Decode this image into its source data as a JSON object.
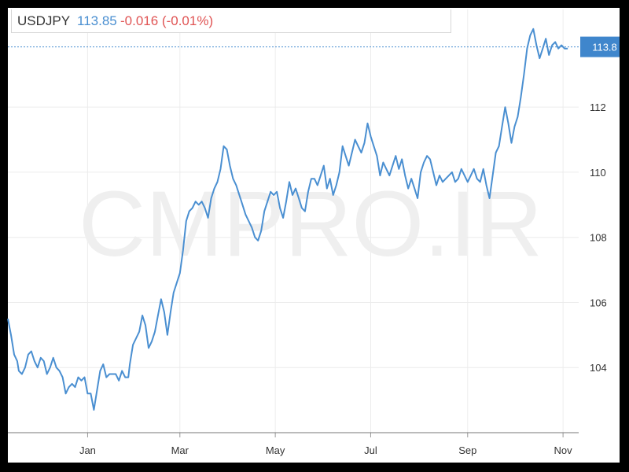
{
  "header": {
    "symbol": "USDJPY",
    "last": "113.85",
    "change": "-0.016 (-0.01%)"
  },
  "watermark": "CMPRO.IR",
  "colors": {
    "line": "#4a8fd1",
    "last_label_bg": "#3f86cc",
    "change_negative": "#e05454",
    "grid": "#ececec",
    "watermark": "#efefef"
  },
  "chart_data": {
    "type": "line",
    "title": "",
    "xlabel": "",
    "ylabel": "",
    "ylim": [
      102.0,
      115.0
    ],
    "xlim": [
      0,
      365
    ],
    "grid": true,
    "y_axis_position": "right",
    "y_ticks": [
      104,
      106,
      108,
      110,
      112
    ],
    "x_ticks": [
      {
        "x": 51,
        "label": "Jan"
      },
      {
        "x": 110,
        "label": "Mar"
      },
      {
        "x": 171,
        "label": "May"
      },
      {
        "x": 232,
        "label": "Jul"
      },
      {
        "x": 294,
        "label": "Sep"
      },
      {
        "x": 355,
        "label": "Nov"
      }
    ],
    "last_value_label": "113.8",
    "last_value": 113.85,
    "series": [
      {
        "values": [
          [
            0,
            105.5
          ],
          [
            2,
            105.0
          ],
          [
            4,
            104.4
          ],
          [
            6,
            104.2
          ],
          [
            7,
            103.9
          ],
          [
            9,
            103.8
          ],
          [
            11,
            104.0
          ],
          [
            13,
            104.4
          ],
          [
            15,
            104.5
          ],
          [
            17,
            104.2
          ],
          [
            19,
            104.0
          ],
          [
            21,
            104.3
          ],
          [
            23,
            104.2
          ],
          [
            25,
            103.8
          ],
          [
            27,
            104.0
          ],
          [
            29,
            104.3
          ],
          [
            31,
            104.0
          ],
          [
            33,
            103.9
          ],
          [
            35,
            103.7
          ],
          [
            37,
            103.2
          ],
          [
            39,
            103.4
          ],
          [
            41,
            103.5
          ],
          [
            43,
            103.4
          ],
          [
            45,
            103.7
          ],
          [
            47,
            103.6
          ],
          [
            49,
            103.7
          ],
          [
            51,
            103.2
          ],
          [
            53,
            103.2
          ],
          [
            55,
            102.7
          ],
          [
            57,
            103.3
          ],
          [
            59,
            103.9
          ],
          [
            61,
            104.1
          ],
          [
            63,
            103.7
          ],
          [
            65,
            103.8
          ],
          [
            67,
            103.8
          ],
          [
            69,
            103.8
          ],
          [
            71,
            103.6
          ],
          [
            73,
            103.9
          ],
          [
            75,
            103.7
          ],
          [
            77,
            103.7
          ],
          [
            78,
            104.1
          ],
          [
            80,
            104.7
          ],
          [
            82,
            104.9
          ],
          [
            84,
            105.1
          ],
          [
            86,
            105.6
          ],
          [
            88,
            105.3
          ],
          [
            90,
            104.6
          ],
          [
            92,
            104.8
          ],
          [
            94,
            105.1
          ],
          [
            96,
            105.6
          ],
          [
            98,
            106.1
          ],
          [
            100,
            105.7
          ],
          [
            102,
            105.0
          ],
          [
            104,
            105.7
          ],
          [
            106,
            106.3
          ],
          [
            108,
            106.6
          ],
          [
            110,
            106.9
          ],
          [
            112,
            107.6
          ],
          [
            114,
            108.5
          ],
          [
            116,
            108.8
          ],
          [
            118,
            108.9
          ],
          [
            120,
            109.1
          ],
          [
            122,
            109.0
          ],
          [
            124,
            109.1
          ],
          [
            126,
            108.9
          ],
          [
            128,
            108.6
          ],
          [
            130,
            109.2
          ],
          [
            132,
            109.5
          ],
          [
            134,
            109.7
          ],
          [
            136,
            110.1
          ],
          [
            138,
            110.8
          ],
          [
            140,
            110.7
          ],
          [
            142,
            110.2
          ],
          [
            144,
            109.8
          ],
          [
            146,
            109.6
          ],
          [
            148,
            109.3
          ],
          [
            150,
            109.0
          ],
          [
            152,
            108.7
          ],
          [
            154,
            108.5
          ],
          [
            156,
            108.3
          ],
          [
            158,
            108.0
          ],
          [
            160,
            107.9
          ],
          [
            162,
            108.2
          ],
          [
            164,
            108.8
          ],
          [
            166,
            109.1
          ],
          [
            168,
            109.4
          ],
          [
            170,
            109.3
          ],
          [
            172,
            109.4
          ],
          [
            174,
            108.9
          ],
          [
            176,
            108.6
          ],
          [
            178,
            109.1
          ],
          [
            180,
            109.7
          ],
          [
            182,
            109.3
          ],
          [
            184,
            109.5
          ],
          [
            186,
            109.2
          ],
          [
            188,
            108.9
          ],
          [
            190,
            108.8
          ],
          [
            192,
            109.4
          ],
          [
            194,
            109.8
          ],
          [
            196,
            109.8
          ],
          [
            198,
            109.6
          ],
          [
            200,
            109.9
          ],
          [
            202,
            110.2
          ],
          [
            204,
            109.5
          ],
          [
            206,
            109.8
          ],
          [
            208,
            109.3
          ],
          [
            210,
            109.6
          ],
          [
            212,
            110.0
          ],
          [
            214,
            110.8
          ],
          [
            216,
            110.5
          ],
          [
            218,
            110.2
          ],
          [
            220,
            110.6
          ],
          [
            222,
            111.0
          ],
          [
            224,
            110.8
          ],
          [
            226,
            110.6
          ],
          [
            228,
            110.9
          ],
          [
            230,
            111.5
          ],
          [
            232,
            111.1
          ],
          [
            234,
            110.8
          ],
          [
            236,
            110.5
          ],
          [
            238,
            109.9
          ],
          [
            240,
            110.3
          ],
          [
            242,
            110.1
          ],
          [
            244,
            109.9
          ],
          [
            246,
            110.2
          ],
          [
            248,
            110.5
          ],
          [
            250,
            110.1
          ],
          [
            252,
            110.4
          ],
          [
            254,
            109.9
          ],
          [
            256,
            109.5
          ],
          [
            258,
            109.8
          ],
          [
            260,
            109.5
          ],
          [
            262,
            109.2
          ],
          [
            264,
            110.0
          ],
          [
            266,
            110.3
          ],
          [
            268,
            110.5
          ],
          [
            270,
            110.4
          ],
          [
            272,
            110.0
          ],
          [
            274,
            109.6
          ],
          [
            276,
            109.9
          ],
          [
            278,
            109.7
          ],
          [
            280,
            109.8
          ],
          [
            282,
            109.9
          ],
          [
            284,
            110.0
          ],
          [
            286,
            109.7
          ],
          [
            288,
            109.8
          ],
          [
            290,
            110.1
          ],
          [
            292,
            109.9
          ],
          [
            294,
            109.7
          ],
          [
            296,
            109.9
          ],
          [
            298,
            110.1
          ],
          [
            300,
            109.8
          ],
          [
            302,
            109.7
          ],
          [
            304,
            110.1
          ],
          [
            306,
            109.6
          ],
          [
            308,
            109.2
          ],
          [
            310,
            109.9
          ],
          [
            312,
            110.6
          ],
          [
            314,
            110.8
          ],
          [
            316,
            111.4
          ],
          [
            318,
            112.0
          ],
          [
            320,
            111.5
          ],
          [
            322,
            110.9
          ],
          [
            324,
            111.4
          ],
          [
            326,
            111.7
          ],
          [
            328,
            112.3
          ],
          [
            330,
            113.0
          ],
          [
            332,
            113.8
          ],
          [
            334,
            114.2
          ],
          [
            336,
            114.4
          ],
          [
            338,
            113.9
          ],
          [
            340,
            113.5
          ],
          [
            342,
            113.8
          ],
          [
            344,
            114.1
          ],
          [
            346,
            113.6
          ],
          [
            348,
            113.9
          ],
          [
            350,
            114.0
          ],
          [
            352,
            113.8
          ],
          [
            354,
            113.9
          ],
          [
            356,
            113.8
          ],
          [
            358,
            113.8
          ]
        ]
      }
    ]
  }
}
